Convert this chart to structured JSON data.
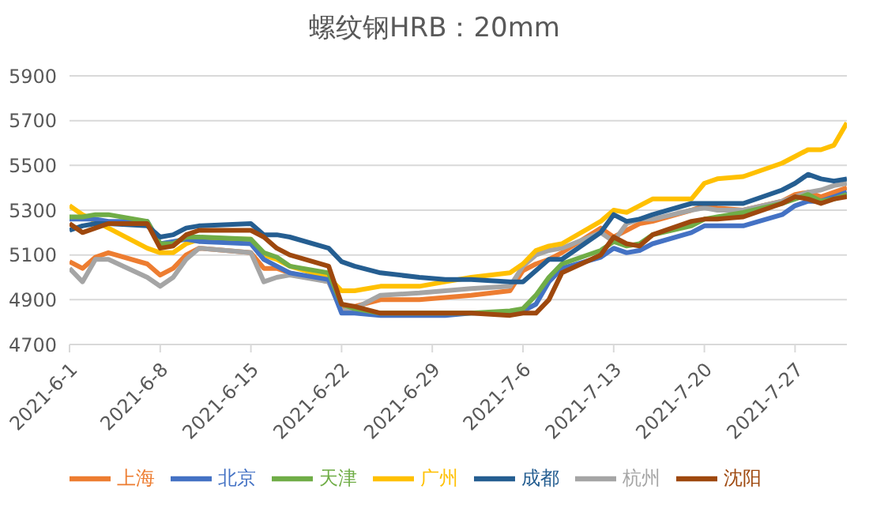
{
  "chart_data": {
    "type": "line",
    "title": "螺纹钢HRB：20mm",
    "x": [
      "2021-06-01",
      "2021-06-02",
      "2021-06-03",
      "2021-06-04",
      "2021-06-07",
      "2021-06-08",
      "2021-06-09",
      "2021-06-10",
      "2021-06-11",
      "2021-06-15",
      "2021-06-16",
      "2021-06-17",
      "2021-06-18",
      "2021-06-21",
      "2021-06-22",
      "2021-06-23",
      "2021-06-25",
      "2021-06-28",
      "2021-06-30",
      "2021-07-02",
      "2021-07-05",
      "2021-07-06",
      "2021-07-07",
      "2021-07-08",
      "2021-07-09",
      "2021-07-12",
      "2021-07-13",
      "2021-07-14",
      "2021-07-15",
      "2021-07-16",
      "2021-07-19",
      "2021-07-20",
      "2021-07-21",
      "2021-07-23",
      "2021-07-26",
      "2021-07-27",
      "2021-07-28",
      "2021-07-29",
      "2021-07-30",
      "2021-07-31"
    ],
    "series": [
      {
        "name": "上海",
        "color": "#ed7d31",
        "values": [
          5070,
          5040,
          5090,
          5110,
          5060,
          5010,
          5040,
          5100,
          5130,
          5110,
          5040,
          5040,
          5020,
          4980,
          4870,
          4870,
          4900,
          4900,
          4910,
          4920,
          4940,
          5030,
          5060,
          5080,
          5110,
          5220,
          5180,
          5210,
          5240,
          5250,
          5300,
          5320,
          5310,
          5300,
          5340,
          5370,
          5380,
          5360,
          5380,
          5400
        ]
      },
      {
        "name": "杭州",
        "color": "#a5a5a5",
        "values": [
          5040,
          4980,
          5080,
          5080,
          5000,
          4960,
          5000,
          5080,
          5130,
          5110,
          4980,
          5000,
          5010,
          4980,
          4850,
          4860,
          4920,
          4930,
          4940,
          4950,
          4960,
          5050,
          5100,
          5120,
          5130,
          5200,
          5160,
          5240,
          5260,
          5260,
          5300,
          5310,
          5300,
          5300,
          5340,
          5360,
          5380,
          5390,
          5410,
          5420
        ]
      },
      {
        "name": "广州",
        "color": "#ffc000",
        "values": [
          5320,
          5280,
          5250,
          5220,
          5130,
          5110,
          5110,
          5150,
          5170,
          5170,
          5100,
          5080,
          5050,
          5000,
          4940,
          4940,
          4960,
          4960,
          4980,
          5000,
          5020,
          5060,
          5120,
          5140,
          5150,
          5250,
          5300,
          5290,
          5320,
          5350,
          5350,
          5420,
          5440,
          5450,
          5510,
          5540,
          5570,
          5570,
          5590,
          5690
        ]
      },
      {
        "name": "北京",
        "color": "#4472c4",
        "values": [
          5260,
          5260,
          5260,
          5250,
          5250,
          5150,
          5160,
          5170,
          5160,
          5150,
          5080,
          5050,
          5020,
          4990,
          4840,
          4840,
          4830,
          4830,
          4830,
          4840,
          4840,
          4850,
          4880,
          4980,
          5040,
          5090,
          5130,
          5110,
          5120,
          5150,
          5200,
          5230,
          5230,
          5230,
          5280,
          5320,
          5340,
          5340,
          5360,
          5380
        ]
      },
      {
        "name": "天津",
        "color": "#70ad47",
        "values": [
          5270,
          5270,
          5280,
          5280,
          5250,
          5150,
          5150,
          5180,
          5180,
          5170,
          5110,
          5090,
          5050,
          5020,
          4880,
          4860,
          4840,
          4840,
          4840,
          4840,
          4850,
          4860,
          4920,
          5000,
          5060,
          5120,
          5160,
          5140,
          5150,
          5190,
          5230,
          5260,
          5270,
          5290,
          5330,
          5350,
          5370,
          5340,
          5350,
          5370
        ]
      },
      {
        "name": "成都",
        "color": "#255e91",
        "values": [
          5210,
          5230,
          5240,
          5240,
          5230,
          5180,
          5190,
          5220,
          5230,
          5240,
          5190,
          5190,
          5180,
          5130,
          5070,
          5050,
          5020,
          5000,
          4990,
          4990,
          4980,
          4980,
          5030,
          5080,
          5080,
          5200,
          5280,
          5250,
          5260,
          5280,
          5330,
          5330,
          5330,
          5330,
          5390,
          5420,
          5460,
          5440,
          5430,
          5440
        ]
      },
      {
        "name": "沈阳",
        "color": "#9e480e",
        "values": [
          5240,
          5200,
          5220,
          5240,
          5240,
          5130,
          5140,
          5190,
          5210,
          5210,
          5180,
          5130,
          5100,
          5050,
          4880,
          4870,
          4840,
          4840,
          4840,
          4840,
          4830,
          4840,
          4840,
          4900,
          5020,
          5100,
          5180,
          5150,
          5140,
          5190,
          5250,
          5260,
          5260,
          5270,
          5330,
          5360,
          5350,
          5330,
          5350,
          5360
        ]
      }
    ],
    "xlim": [
      "2021-06-01",
      "2021-07-31"
    ],
    "xticks": [
      {
        "value": "2021-06-01",
        "label": "2021-6-1"
      },
      {
        "value": "2021-06-08",
        "label": "2021-6-8"
      },
      {
        "value": "2021-06-15",
        "label": "2021-6-15"
      },
      {
        "value": "2021-06-22",
        "label": "2021-6-22"
      },
      {
        "value": "2021-06-29",
        "label": "2021-6-29"
      },
      {
        "value": "2021-07-06",
        "label": "2021-7-6"
      },
      {
        "value": "2021-07-13",
        "label": "2021-7-13"
      },
      {
        "value": "2021-07-20",
        "label": "2021-7-20"
      },
      {
        "value": "2021-07-27",
        "label": "2021-7-27"
      }
    ],
    "ylim": [
      4700,
      5900
    ],
    "yticks": [
      4700,
      4900,
      5100,
      5300,
      5500,
      5700,
      5900
    ],
    "grid": "y",
    "legend": "bottom",
    "marker": "none",
    "line_style": "solid"
  }
}
